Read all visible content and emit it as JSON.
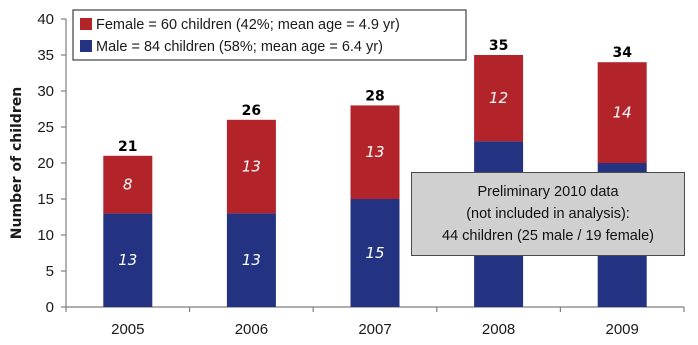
{
  "chart_data": {
    "type": "bar",
    "stacked": true,
    "categories": [
      "2005",
      "2006",
      "2007",
      "2008",
      "2009"
    ],
    "series": [
      {
        "name": "Male = 84 children (58%; mean age = 6.4 yr)",
        "values": [
          13,
          13,
          15,
          23,
          20
        ],
        "color": "#233381"
      },
      {
        "name": "Female = 60 children (42%; mean age = 4.9 yr)",
        "values": [
          8,
          13,
          13,
          12,
          14
        ],
        "color": "#b3242a"
      }
    ],
    "totals": [
      21,
      26,
      28,
      35,
      34
    ],
    "ylabel": "Number of children",
    "xlabel": "",
    "ylim": [
      0,
      40
    ],
    "yticks": [
      0,
      5,
      10,
      15,
      20,
      25,
      30,
      35,
      40
    ],
    "grid": false,
    "legend": {
      "placement": "top-left",
      "entries": [
        {
          "label": "Female = 60 children (42%; mean age = 4.9 yr)",
          "color": "#b3242a"
        },
        {
          "label": "Male = 84 children (58%; mean age = 6.4 yr)",
          "color": "#233381"
        }
      ]
    },
    "annotation": {
      "lines": [
        "Preliminary 2010 data",
        "(not included in analysis):",
        "44 children (25 male / 19 female)"
      ]
    }
  }
}
